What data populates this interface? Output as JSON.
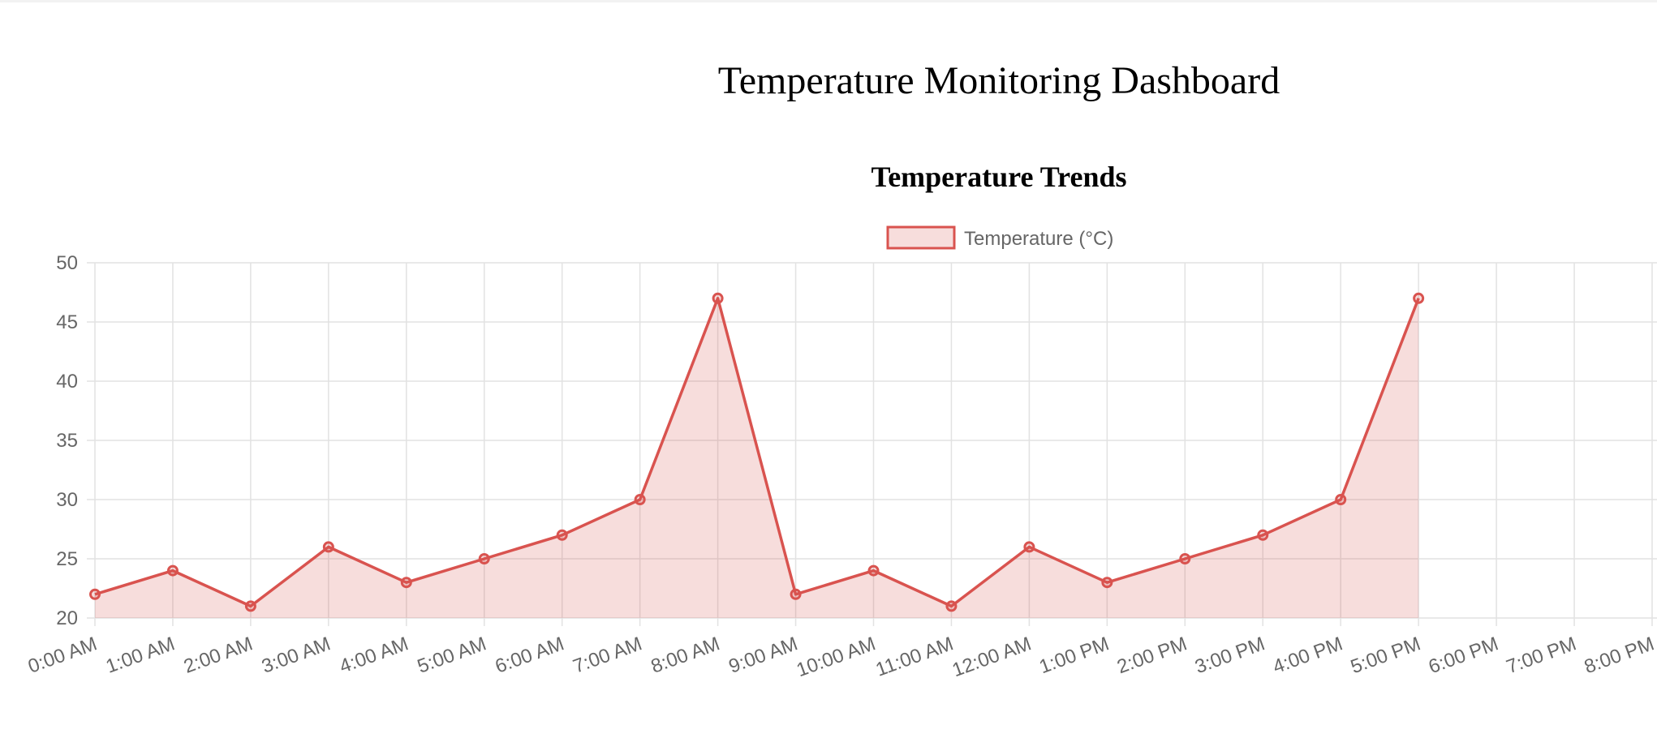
{
  "page": {
    "title": "Temperature Monitoring Dashboard"
  },
  "colors": {
    "line": "#d9534f",
    "fill": "rgba(217,83,79,0.2)",
    "grid": "#e2e2e2",
    "axis_text": "#666666"
  },
  "chart_data": {
    "type": "line",
    "title": "Temperature Trends",
    "xlabel": "",
    "ylabel": "",
    "ylim": [
      20,
      50
    ],
    "y_ticks": [
      20,
      25,
      30,
      35,
      40,
      45,
      50
    ],
    "grid": true,
    "legend": "top-center",
    "categories": [
      "0:00 AM",
      "1:00 AM",
      "2:00 AM",
      "3:00 AM",
      "4:00 AM",
      "5:00 AM",
      "6:00 AM",
      "7:00 AM",
      "8:00 AM",
      "9:00 AM",
      "10:00 AM",
      "11:00 AM",
      "12:00 AM",
      "1:00 PM",
      "2:00 PM",
      "3:00 PM",
      "4:00 PM",
      "5:00 PM",
      "6:00 PM",
      "7:00 PM",
      "8:00 PM"
    ],
    "series": [
      {
        "name": "Temperature (°C)",
        "values": [
          22,
          24,
          21,
          26,
          23,
          25,
          27,
          30,
          47,
          22,
          24,
          21,
          26,
          23,
          25,
          27,
          30,
          47,
          null,
          null,
          null
        ]
      }
    ]
  }
}
